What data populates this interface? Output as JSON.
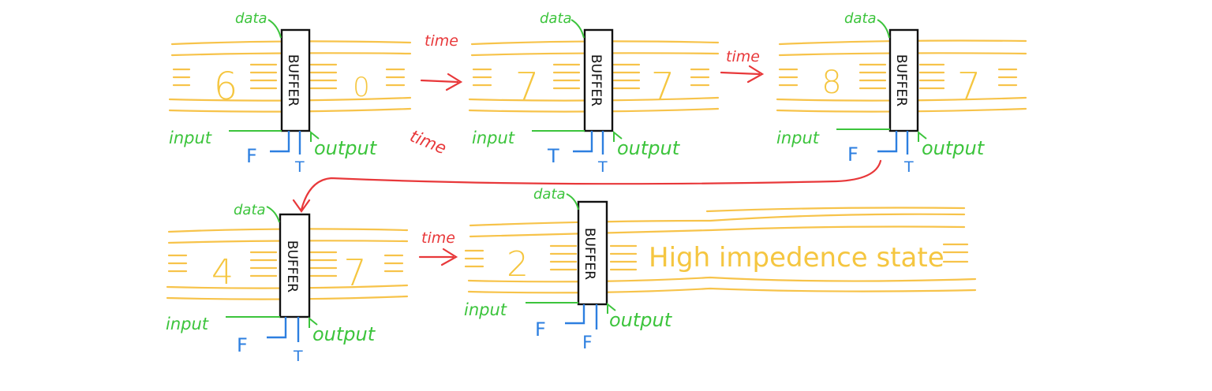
{
  "colors": {
    "bus": "#f7c34a",
    "bus_value": "#f5c640",
    "green_label": "#3cc43c",
    "blue_control": "#2d7fe0",
    "red_time": "#e8383a",
    "buffer_outline": "#111111"
  },
  "labels": {
    "data": "data",
    "input": "input",
    "output": "output",
    "buffer": "BUFFER",
    "time": "time"
  },
  "panels": [
    {
      "input_value": "6",
      "output_value": "0",
      "control_left": "F",
      "control_right": "T"
    },
    {
      "input_value": "7",
      "output_value": "7",
      "control_left": "T",
      "control_right": "T"
    },
    {
      "input_value": "8",
      "output_value": "7",
      "control_left": "F",
      "control_right": "T"
    },
    {
      "input_value": "4",
      "output_value": "7",
      "control_left": "F",
      "control_right": "T"
    },
    {
      "input_value": "2",
      "output_value": "High impedence state",
      "control_left": "F",
      "control_right": "F"
    }
  ]
}
